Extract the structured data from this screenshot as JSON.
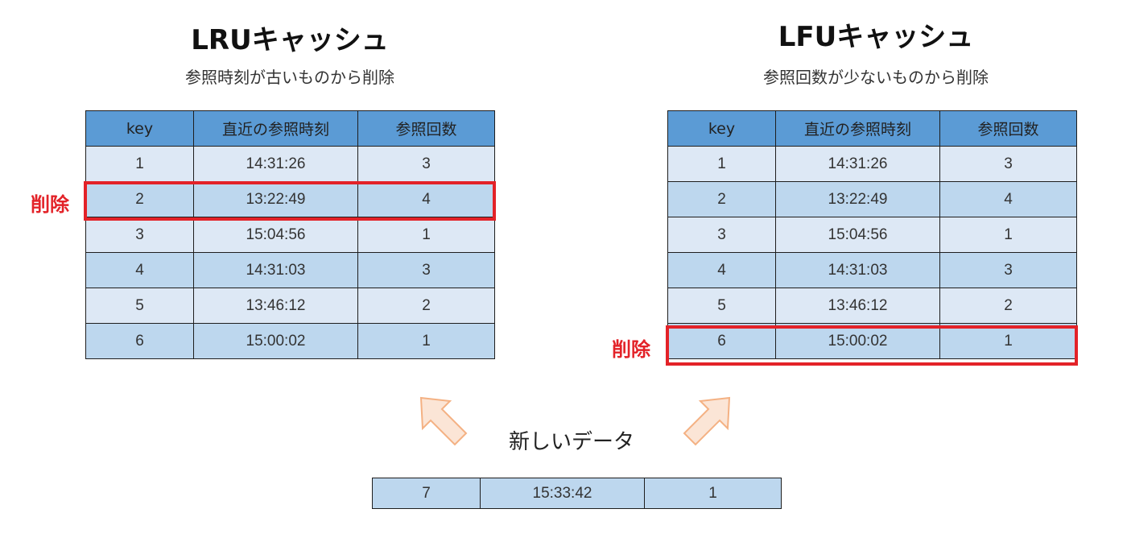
{
  "lru": {
    "title": "LRUキャッシュ",
    "subtitle": "参照時刻が古いものから削除",
    "headers": [
      "key",
      "直近の参照時刻",
      "参照回数"
    ],
    "rows": [
      [
        "1",
        "14:31:26",
        "3"
      ],
      [
        "2",
        "13:22:49",
        "4"
      ],
      [
        "3",
        "15:04:56",
        "1"
      ],
      [
        "4",
        "14:31:03",
        "3"
      ],
      [
        "5",
        "13:46:12",
        "2"
      ],
      [
        "6",
        "15:00:02",
        "1"
      ]
    ],
    "delete_label": "削除"
  },
  "lfu": {
    "title": "LFUキャッシュ",
    "subtitle": "参照回数が少ないものから削除",
    "headers": [
      "key",
      "直近の参照時刻",
      "参照回数"
    ],
    "rows": [
      [
        "1",
        "14:31:26",
        "3"
      ],
      [
        "2",
        "13:22:49",
        "4"
      ],
      [
        "3",
        "15:04:56",
        "1"
      ],
      [
        "4",
        "14:31:03",
        "3"
      ],
      [
        "5",
        "13:46:12",
        "2"
      ],
      [
        "6",
        "15:00:02",
        "1"
      ]
    ],
    "delete_label": "削除"
  },
  "new_data": {
    "label": "新しいデータ",
    "row": [
      "7",
      "15:33:42",
      "1"
    ]
  },
  "colors": {
    "header": "#5b9bd5",
    "row_light": "#dde8f5",
    "row_dark": "#bdd7ee",
    "highlight": "#e32228",
    "arrow_fill": "#fbe5d6",
    "arrow_stroke": "#f4b183"
  }
}
